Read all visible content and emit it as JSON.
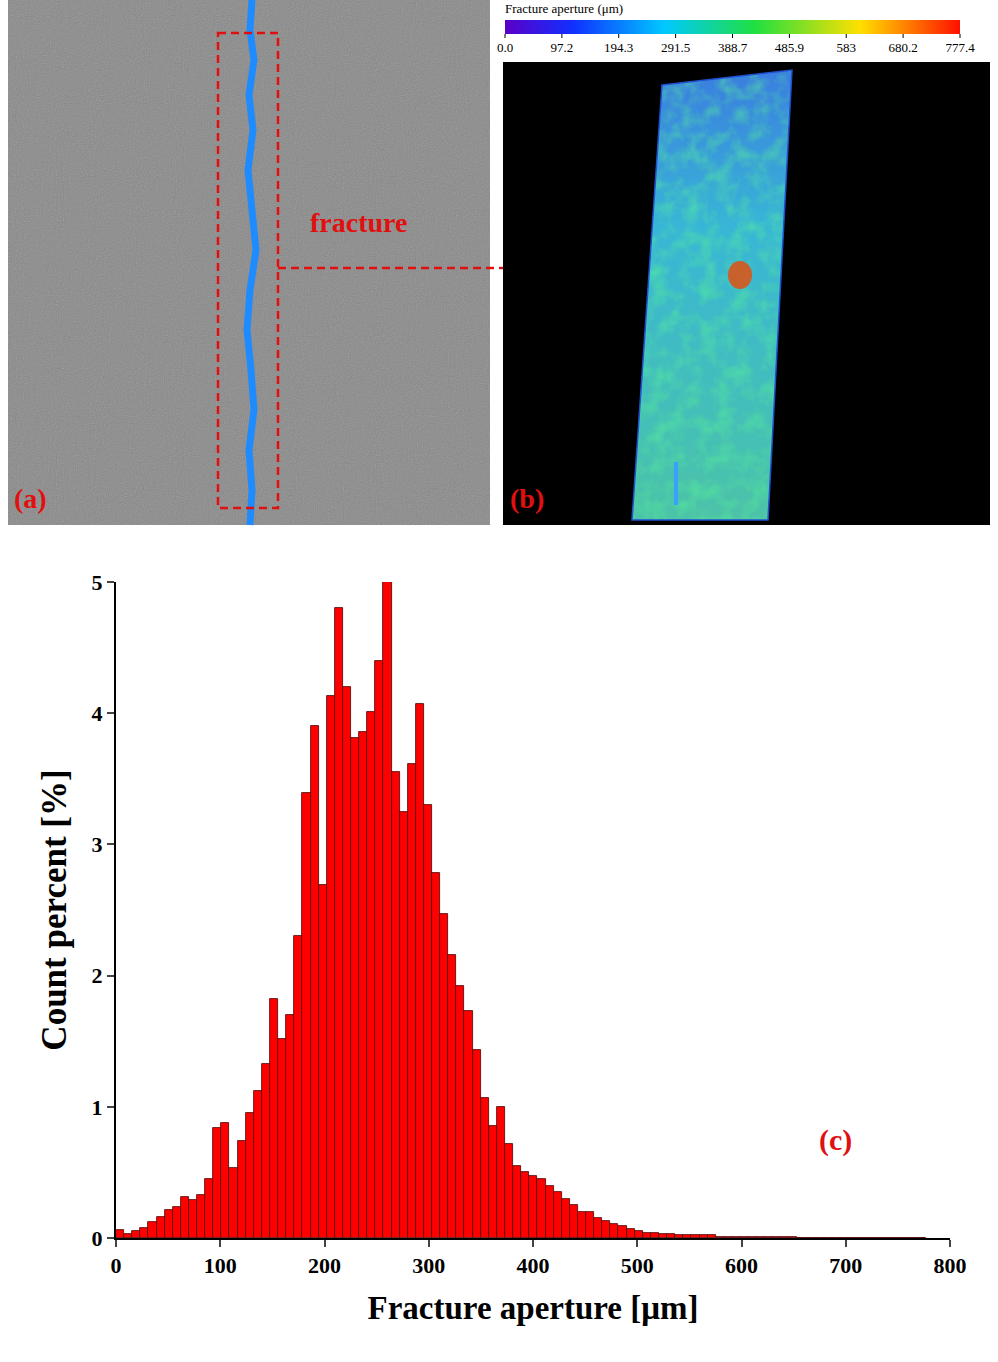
{
  "panels": {
    "a": {
      "label": "(a)",
      "annotation": "fracture"
    },
    "b": {
      "label": "(b)",
      "colorbar": {
        "title": "Fracture aperture (μm)",
        "range": [
          0,
          777.4
        ],
        "ticks": [
          {
            "value": 0,
            "label": "0.0"
          },
          97.2,
          194.3,
          291.5,
          388.7,
          485.9,
          583.0,
          680.2,
          777.4
        ]
      }
    }
  },
  "chart_data": {
    "type": "histogram",
    "label": "(c)",
    "xlabel": "Fracture aperture [μm]",
    "ylabel": "Count percent [%]",
    "color": "#ff0000",
    "grid": false,
    "xlim": [
      0,
      800
    ],
    "ylim": [
      0,
      5
    ],
    "xticks": [
      0,
      100,
      200,
      300,
      400,
      500,
      600,
      700,
      800
    ],
    "yticks": [
      0,
      1,
      2,
      3,
      4,
      5
    ],
    "bins": [
      0,
      7.77,
      15.55,
      23.32,
      31.1,
      38.87,
      46.64,
      54.42,
      62.19,
      69.97,
      77.74,
      85.51,
      93.29,
      101.06,
      108.84,
      116.61,
      124.38,
      132.16,
      139.93,
      147.71,
      155.48,
      163.25,
      171.03,
      178.8,
      186.58,
      194.35,
      202.12,
      209.9,
      217.67,
      225.45,
      233.22,
      240.99,
      248.77,
      256.54,
      264.32,
      272.09,
      279.86,
      287.64,
      295.41,
      303.19,
      310.96,
      318.73,
      326.51,
      334.28,
      342.06,
      349.83,
      357.6,
      365.38,
      373.15,
      380.93,
      388.7,
      396.47,
      404.25,
      412.02,
      419.8,
      427.57,
      435.34,
      443.12,
      450.89,
      458.67,
      466.44,
      474.21,
      481.99,
      489.76,
      497.54,
      505.31,
      513.08,
      520.86,
      528.63,
      536.41,
      544.18,
      551.95,
      559.73,
      567.5,
      575.28,
      583.05,
      590.82,
      598.6,
      606.37,
      614.15,
      621.92,
      629.69,
      637.47,
      645.24,
      653.02,
      660.79,
      668.56,
      676.34,
      684.11,
      691.89,
      699.66,
      707.43,
      715.21,
      722.98,
      730.76,
      738.53,
      746.3,
      754.08,
      761.85,
      769.63,
      777.4
    ],
    "values": [
      0.06,
      0.03,
      0.05,
      0.08,
      0.12,
      0.16,
      0.21,
      0.24,
      0.31,
      0.29,
      0.33,
      0.45,
      0.84,
      0.88,
      0.53,
      0.74,
      0.95,
      1.12,
      1.33,
      1.82,
      1.52,
      1.7,
      2.3,
      3.39,
      3.9,
      2.69,
      4.13,
      4.8,
      4.2,
      3.81,
      3.86,
      4.01,
      4.4,
      5.0,
      3.55,
      3.25,
      3.61,
      4.07,
      3.3,
      2.78,
      2.47,
      2.16,
      1.92,
      1.73,
      1.43,
      1.07,
      0.85,
      1.0,
      0.72,
      0.55,
      0.5,
      0.47,
      0.45,
      0.4,
      0.35,
      0.3,
      0.25,
      0.2,
      0.2,
      0.15,
      0.13,
      0.11,
      0.09,
      0.07,
      0.05,
      0.04,
      0.04,
      0.03,
      0.03,
      0.02,
      0.02,
      0.02,
      0.02,
      0.02,
      0.01,
      0.01,
      0.01,
      0.01,
      0.01,
      0.01,
      0.01,
      0.01,
      0.01,
      0.01,
      0,
      0,
      0,
      0,
      0,
      0,
      0,
      0,
      0,
      0,
      0,
      0,
      0,
      0,
      0,
      0
    ]
  }
}
